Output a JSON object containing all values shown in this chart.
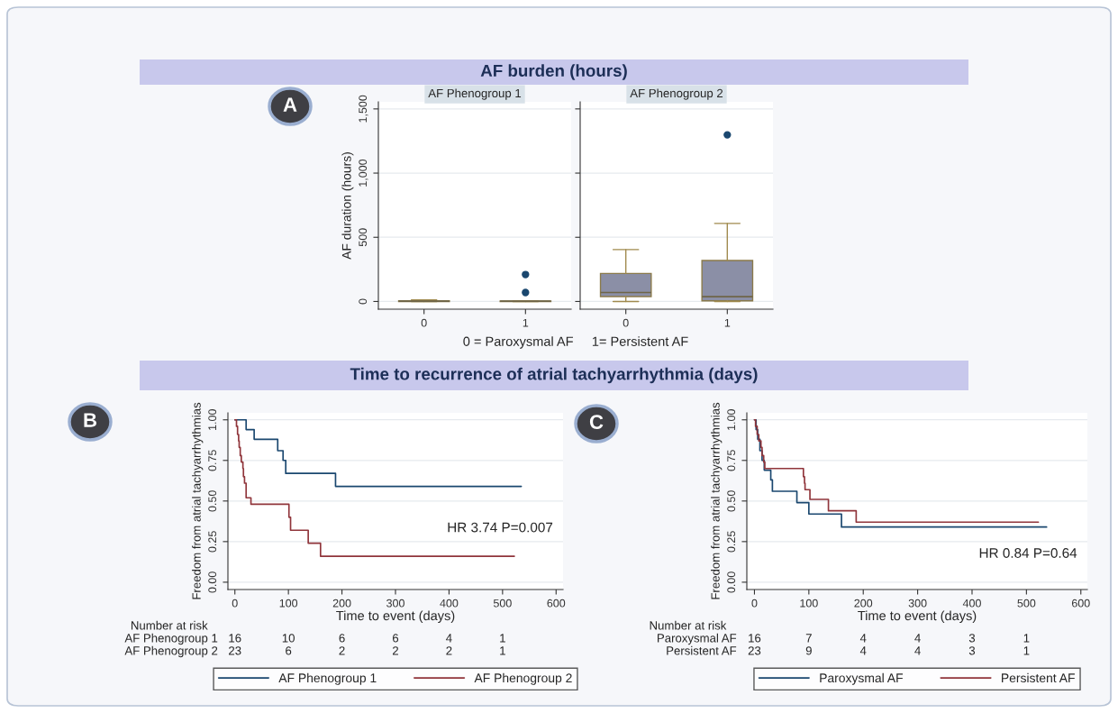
{
  "chart_data": [
    {
      "type": "box",
      "title": "AF Phenogroup 1",
      "ylabel": "AF duration (hours)",
      "xlabel": "0 = Paroxysmal AF     1= Persistent AF",
      "categories": [
        "0",
        "1"
      ],
      "series": [
        {
          "color": "#8b8fa6",
          "boxes": [
            {
              "low": 0,
              "q1": 0,
              "median": 2,
              "q3": 6,
              "high": 12
            },
            {
              "low": 0,
              "q1": 0,
              "median": 2,
              "q3": 4,
              "high": 6,
              "outliers": [
                70,
                210
              ]
            }
          ]
        }
      ],
      "ylim": [
        -60,
        1555
      ],
      "yticks": [
        0,
        500,
        {
          "value": 1000,
          "label": "1,000"
        },
        {
          "value": 1500,
          "label": "1,500"
        }
      ],
      "grid": "y",
      "annotations": [
        "AF burden (hours)",
        "A"
      ]
    },
    {
      "type": "box",
      "title": "AF Phenogroup 2",
      "categories": [
        "0",
        "1"
      ],
      "series": [
        {
          "color": "#8b8fa6",
          "boxes": [
            {
              "low": 0,
              "q1": 38,
              "median": 70,
              "q3": 218,
              "high": 404
            },
            {
              "low": 0,
              "q1": 5,
              "median": 38,
              "q3": 319,
              "high": 608,
              "outliers": [
                1298
              ]
            }
          ]
        }
      ],
      "ylim": [
        -60,
        1555
      ],
      "yticks": [
        0,
        500,
        1000,
        1500
      ],
      "grid": "y",
      "tick_labels": "x"
    },
    {
      "type": "step",
      "xlabel": "Time to event (days)",
      "ylabel": "Freedom from atrial tachyarrhythmias",
      "series": [
        {
          "name": "AF Phenogroup 1",
          "color": "#1a476f",
          "x": [
            0,
            21,
            36,
            80,
            90,
            95,
            188,
            535
          ],
          "values": [
            1,
            0.94,
            0.88,
            0.81,
            0.75,
            0.67,
            0.59,
            0.59
          ]
        },
        {
          "name": "AF Phenogroup 2",
          "color": "#90353b",
          "x": [
            0,
            3,
            5,
            7,
            8,
            10,
            12,
            15,
            16,
            18,
            21,
            30,
            101,
            104,
            137,
            160,
            522
          ],
          "values": [
            1,
            0.96,
            0.91,
            0.87,
            0.83,
            0.78,
            0.74,
            0.7,
            0.65,
            0.61,
            0.52,
            0.48,
            0.4,
            0.32,
            0.24,
            0.16,
            0.16
          ]
        }
      ],
      "xlim": [
        -13,
        613
      ],
      "xticks": [
        0,
        100,
        200,
        300,
        400,
        500,
        600
      ],
      "ylim": [
        -0.045,
        1.043
      ],
      "yticks": [
        {
          "value": 0,
          "label": "0.00"
        },
        {
          "value": 0.25,
          "label": "0.25"
        },
        {
          "value": 0.5,
          "label": "0.50"
        },
        {
          "value": 0.75,
          "label": "0.75"
        },
        {
          "value": 1,
          "label": "1.00"
        }
      ],
      "grid": "y",
      "legend": "bottom",
      "annotations": [
        "Time to recurrence of atrial tachyarrhythmia (days)",
        "B",
        "HR 3.74 P=0.007",
        "Number at risk",
        "AF Phenogroup 1",
        "16",
        "10",
        "6",
        "6",
        "4",
        "1",
        "AF Phenogroup 2",
        "23",
        "6",
        "2",
        "2",
        "2",
        "1"
      ]
    },
    {
      "type": "step",
      "xlabel": "Time to event (days)",
      "ylabel": "Freedom from atrial tachyarrhythmias",
      "series": [
        {
          "name": "Paroxysmal AF",
          "color": "#1a476f",
          "x": [
            0,
            3,
            6,
            10,
            14,
            18,
            30,
            33,
            78,
            100,
            160,
            537
          ],
          "values": [
            1,
            0.94,
            0.88,
            0.81,
            0.75,
            0.69,
            0.63,
            0.56,
            0.49,
            0.42,
            0.34,
            0.34
          ]
        },
        {
          "name": "Persistent AF",
          "color": "#90353b",
          "x": [
            0,
            2,
            5,
            8,
            12,
            14,
            17,
            19,
            90,
            92,
            93,
            102,
            136,
            187,
            522
          ],
          "values": [
            1,
            0.96,
            0.91,
            0.87,
            0.83,
            0.78,
            0.74,
            0.7,
            0.65,
            0.61,
            0.57,
            0.51,
            0.44,
            0.37,
            0.37
          ]
        }
      ],
      "xlim": [
        -14,
        612
      ],
      "xticks": [
        0,
        100,
        200,
        300,
        400,
        500,
        600
      ],
      "ylim": [
        -0.045,
        1.043
      ],
      "yticks": [
        {
          "value": 0,
          "label": "0.00"
        },
        {
          "value": 0.25,
          "label": "0.25"
        },
        {
          "value": 0.5,
          "label": "0.50"
        },
        {
          "value": 0.75,
          "label": "0.75"
        },
        {
          "value": 1,
          "label": "1.00"
        }
      ],
      "grid": "y",
      "legend": "bottom",
      "annotations": [
        "C",
        "HR 0.84 P=0.64",
        "Number at risk",
        "Paroxysmal AF",
        "16",
        "7",
        "4",
        "4",
        "3",
        "1",
        "Persistent AF",
        "23",
        "9",
        "4",
        "4",
        "3",
        "1"
      ]
    }
  ]
}
